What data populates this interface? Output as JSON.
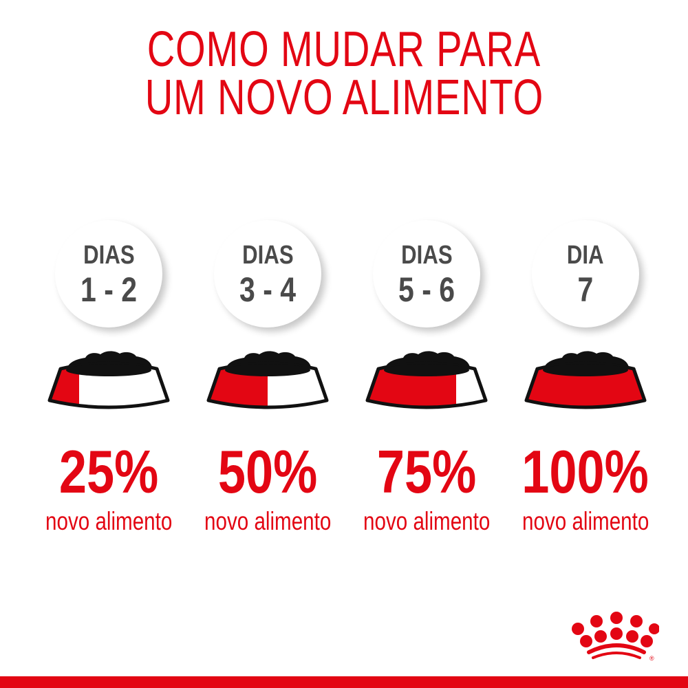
{
  "title": {
    "line1": "COMO MUDAR PARA",
    "line2": "UM NOVO ALIMENTO"
  },
  "steps": [
    {
      "label": "DIAS",
      "days": "1 - 2",
      "percent": "25%",
      "fraction": 0.25,
      "caption": "novo alimento"
    },
    {
      "label": "DIAS",
      "days": "3 - 4",
      "percent": "50%",
      "fraction": 0.5,
      "caption": "novo alimento"
    },
    {
      "label": "DIAS",
      "days": "5 - 6",
      "percent": "75%",
      "fraction": 0.75,
      "caption": "novo alimento"
    },
    {
      "label": "DIA",
      "days": "7",
      "percent": "100%",
      "fraction": 1.0,
      "caption": "novo alimento"
    }
  ],
  "logo": {
    "name": "royal-canin-crown-logo",
    "mark": "®"
  },
  "colors": {
    "brand_red": "#e30613",
    "text_gray": "#4a4a4a",
    "food_black": "#111111"
  }
}
